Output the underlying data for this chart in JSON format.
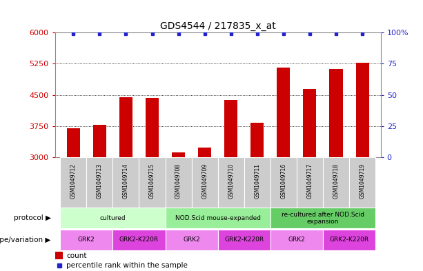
{
  "title": "GDS4544 / 217835_x_at",
  "samples": [
    "GSM1049712",
    "GSM1049713",
    "GSM1049714",
    "GSM1049715",
    "GSM1049708",
    "GSM1049709",
    "GSM1049710",
    "GSM1049711",
    "GSM1049716",
    "GSM1049717",
    "GSM1049718",
    "GSM1049719"
  ],
  "counts": [
    3700,
    3780,
    4450,
    4420,
    3120,
    3230,
    4380,
    3830,
    5150,
    4640,
    5130,
    5270
  ],
  "percentile": [
    99,
    99,
    99,
    99,
    99,
    99,
    99,
    99,
    99,
    99,
    99,
    99
  ],
  "ylim_left": [
    3000,
    6000
  ],
  "ylim_right": [
    0,
    100
  ],
  "yticks_left": [
    3000,
    3750,
    4500,
    5250,
    6000
  ],
  "yticks_right": [
    0,
    25,
    50,
    75,
    100
  ],
  "bar_color": "#cc0000",
  "dot_color": "#2222cc",
  "bar_width": 0.5,
  "protocols": [
    {
      "label": "cultured",
      "start": 0,
      "end": 4,
      "color": "#ccffcc"
    },
    {
      "label": "NOD.Scid mouse-expanded",
      "start": 4,
      "end": 8,
      "color": "#99ee99"
    },
    {
      "label": "re-cultured after NOD.Scid\nexpansion",
      "start": 8,
      "end": 12,
      "color": "#66cc66"
    }
  ],
  "genotypes": [
    {
      "label": "GRK2",
      "start": 0,
      "end": 2,
      "color": "#ee88ee"
    },
    {
      "label": "GRK2-K220R",
      "start": 2,
      "end": 4,
      "color": "#dd44dd"
    },
    {
      "label": "GRK2",
      "start": 4,
      "end": 6,
      "color": "#ee88ee"
    },
    {
      "label": "GRK2-K220R",
      "start": 6,
      "end": 8,
      "color": "#dd44dd"
    },
    {
      "label": "GRK2",
      "start": 8,
      "end": 10,
      "color": "#ee88ee"
    },
    {
      "label": "GRK2-K220R",
      "start": 10,
      "end": 12,
      "color": "#dd44dd"
    }
  ],
  "protocol_row_label": "protocol",
  "genotype_row_label": "genotype/variation",
  "legend_count_color": "#cc0000",
  "legend_dot_color": "#2222cc",
  "bg_color": "#ffffff",
  "left_tick_color": "#cc0000",
  "right_tick_color": "#2222cc",
  "sample_bg_color": "#cccccc",
  "left_border_color": "#888888"
}
